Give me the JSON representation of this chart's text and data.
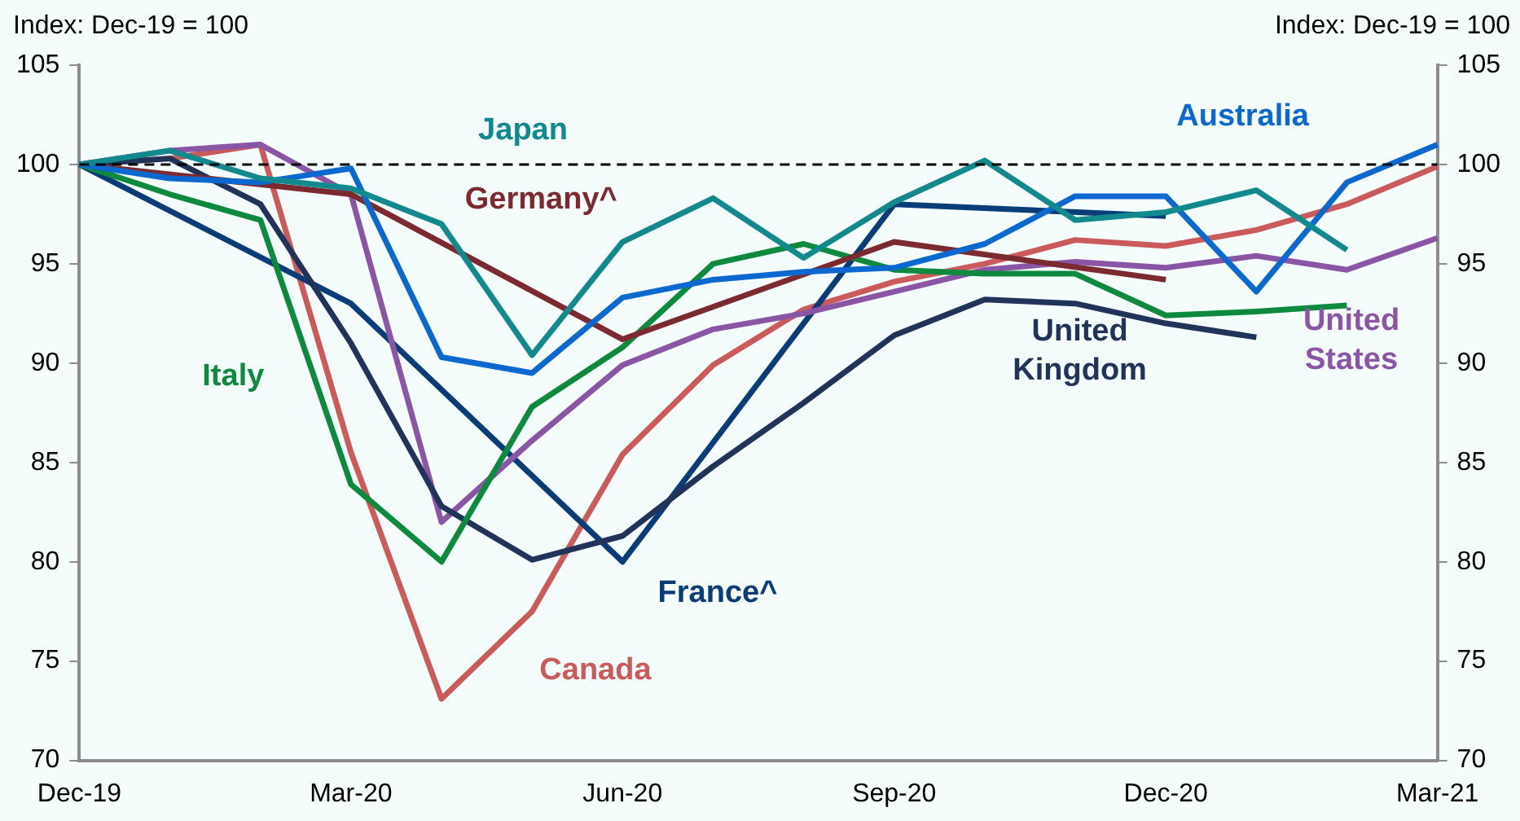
{
  "chart_data": {
    "type": "line",
    "ylabel": "Index: Dec-19 = 100",
    "y2label": "Index: Dec-19 = 100",
    "categories": [
      "Dec-19",
      null,
      null,
      "Mar-20",
      null,
      null,
      "Jun-20",
      null,
      null,
      "Sep-20",
      null,
      null,
      "Dec-20",
      null,
      null,
      "Mar-21"
    ],
    "series": [
      {
        "name": "Japan",
        "color": "#12898c",
        "values": [
          100,
          100.7,
          99.3,
          98.8,
          97.0,
          90.4,
          96.1,
          98.3,
          95.3,
          98.1,
          100.2,
          97.2,
          97.6,
          98.7,
          95.7,
          null
        ]
      },
      {
        "name": "Australia",
        "color": "#0b68cf",
        "values": [
          100,
          99.3,
          99.1,
          99.8,
          90.3,
          89.5,
          93.3,
          94.2,
          94.6,
          94.8,
          96.0,
          98.4,
          98.4,
          93.6,
          99.1,
          101.0
        ]
      },
      {
        "name": "Germany^",
        "color": "#7b2a2f",
        "values": [
          100,
          null,
          null,
          98.5,
          null,
          null,
          91.2,
          null,
          null,
          96.1,
          null,
          null,
          94.2,
          null,
          null,
          null
        ]
      },
      {
        "name": "Italy",
        "color": "#0d8a3d",
        "values": [
          100,
          98.5,
          97.2,
          83.9,
          80.0,
          87.8,
          90.8,
          95.0,
          96.0,
          94.7,
          94.5,
          94.5,
          92.4,
          92.6,
          92.9,
          null
        ]
      },
      {
        "name": "United Kingdom",
        "color": "#22335a",
        "values": [
          100,
          100.3,
          98.0,
          91.0,
          82.8,
          80.1,
          81.3,
          84.8,
          88.0,
          91.4,
          93.2,
          93.0,
          92.0,
          91.3,
          null,
          null
        ]
      },
      {
        "name": "United States",
        "color": "#8b55a6",
        "values": [
          100,
          100.7,
          101.0,
          98.5,
          82.0,
          86.1,
          89.9,
          91.7,
          92.5,
          93.6,
          94.7,
          95.1,
          94.8,
          95.4,
          94.7,
          96.3
        ]
      },
      {
        "name": "France^",
        "color": "#0a3c78",
        "values": [
          100,
          null,
          null,
          93.0,
          null,
          null,
          80.0,
          null,
          null,
          98.0,
          null,
          null,
          97.4,
          null,
          null,
          null
        ]
      },
      {
        "name": "Canada",
        "color": "#cb5a5a",
        "values": [
          100,
          100.3,
          101.0,
          85.5,
          73.1,
          77.5,
          85.4,
          89.9,
          92.7,
          94.1,
          95.0,
          96.2,
          95.9,
          96.7,
          98.0,
          99.9
        ]
      }
    ],
    "ylim": [
      70,
      105
    ],
    "yticks": [
      70,
      75,
      80,
      85,
      90,
      95,
      100,
      105
    ],
    "y2lim": [
      70,
      105
    ],
    "y2ticks": [
      70,
      75,
      80,
      85,
      90,
      95,
      100,
      105
    ],
    "ref_lines": [
      {
        "axis": "y",
        "value": 100,
        "color": "#000000",
        "line_style": "dashed"
      }
    ],
    "grid": false,
    "legend": false,
    "marker": "none",
    "line_style": "solid"
  }
}
